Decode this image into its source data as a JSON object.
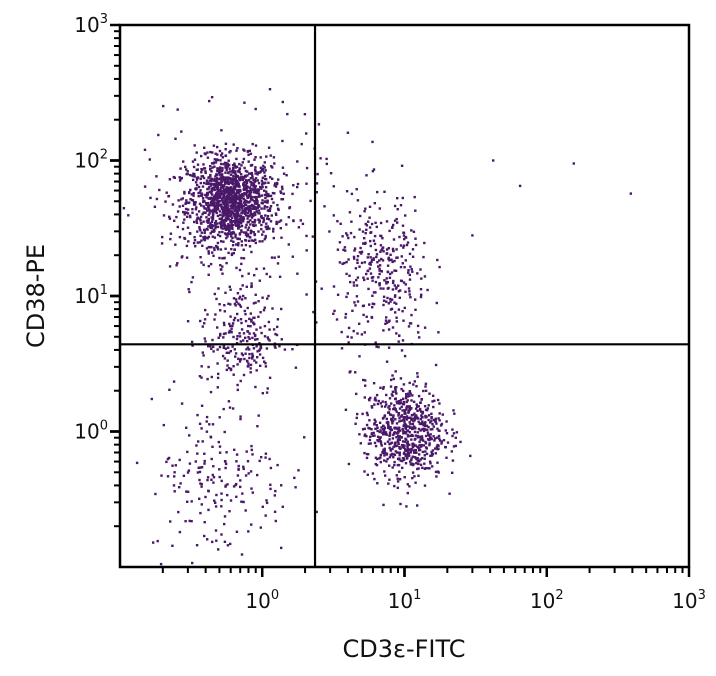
{
  "chart_data": {
    "type": "scatter",
    "xlabel": "CD3ε-FITC",
    "ylabel": "CD38-PE",
    "x_scale": "log",
    "y_scale": "log",
    "xlim": [
      0.1,
      1000
    ],
    "ylim": [
      0.1,
      1000
    ],
    "x_ticks": [
      {
        "base": "10",
        "exp": "0",
        "value": 1
      },
      {
        "base": "10",
        "exp": "1",
        "value": 10
      },
      {
        "base": "10",
        "exp": "2",
        "value": 100
      },
      {
        "base": "10",
        "exp": "3",
        "value": 1000
      }
    ],
    "y_ticks": [
      {
        "base": "10",
        "exp": "0",
        "value": 1
      },
      {
        "base": "10",
        "exp": "1",
        "value": 10
      },
      {
        "base": "10",
        "exp": "2",
        "value": 100
      },
      {
        "base": "10",
        "exp": "3",
        "value": 1000
      }
    ],
    "grid": false,
    "quadrant_gates": {
      "x": 2.35,
      "y": 4.4
    },
    "point_color": "#4a1868",
    "populations": [
      {
        "center": [
          0.6,
          50
        ],
        "spread_decades": [
          0.15,
          0.16
        ],
        "count": 1200
      },
      {
        "center": [
          0.6,
          45
        ],
        "spread_decades": [
          0.32,
          0.3
        ],
        "count": 300
      },
      {
        "center": [
          0.7,
          5
        ],
        "spread_decades": [
          0.14,
          0.22
        ],
        "count": 250
      },
      {
        "center": [
          0.5,
          0.45
        ],
        "spread_decades": [
          0.25,
          0.3
        ],
        "count": 200
      },
      {
        "center": [
          10,
          1.0
        ],
        "spread_decades": [
          0.14,
          0.18
        ],
        "count": 700
      },
      {
        "center": [
          7,
          14
        ],
        "spread_decades": [
          0.17,
          0.3
        ],
        "count": 350
      }
    ],
    "outliers": [
      [
        42,
        100
      ],
      [
        65,
        65
      ],
      [
        155,
        95
      ],
      [
        390,
        57
      ],
      [
        30,
        28
      ],
      [
        1.5,
        220
      ],
      [
        0.9,
        240
      ],
      [
        2.5,
        185
      ],
      [
        0.15,
        120
      ],
      [
        4,
        160
      ]
    ]
  }
}
